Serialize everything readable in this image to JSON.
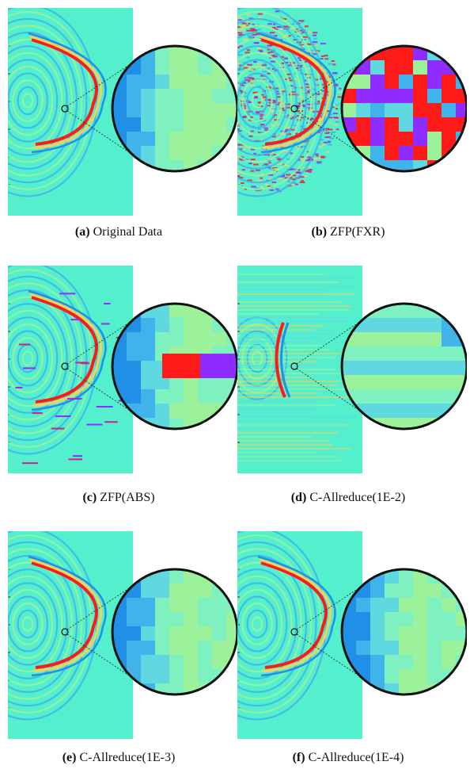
{
  "figure": {
    "palette": {
      "background": "#54efcd",
      "deep_blue": "#1f90e6",
      "blue": "#3fb3ea",
      "cyan": "#5fd8e0",
      "mint": "#7ff0c0",
      "light_green": "#9cf29a",
      "yellow": "#f2d25a",
      "orange": "#f08a3a",
      "red": "#ff1a1a",
      "purple": "#8f2cff",
      "magenta": "#d0208a"
    },
    "panels": [
      {
        "tag": "(a)",
        "label": "Original Data",
        "variant": "original"
      },
      {
        "tag": "(b)",
        "label": "ZFP(FXR)",
        "variant": "zfp-fxr"
      },
      {
        "tag": "(c)",
        "label": "ZFP(ABS)",
        "variant": "zfp-abs"
      },
      {
        "tag": "(d)",
        "label": "C-Allreduce(1E-2)",
        "variant": "callreduce-1e2"
      },
      {
        "tag": "(e)",
        "label": "C-Allreduce(1E-3)",
        "variant": "callreduce-1e3"
      },
      {
        "tag": "(f)",
        "label": "C-Allreduce(1E-4)",
        "variant": "callreduce-1e4"
      }
    ]
  }
}
